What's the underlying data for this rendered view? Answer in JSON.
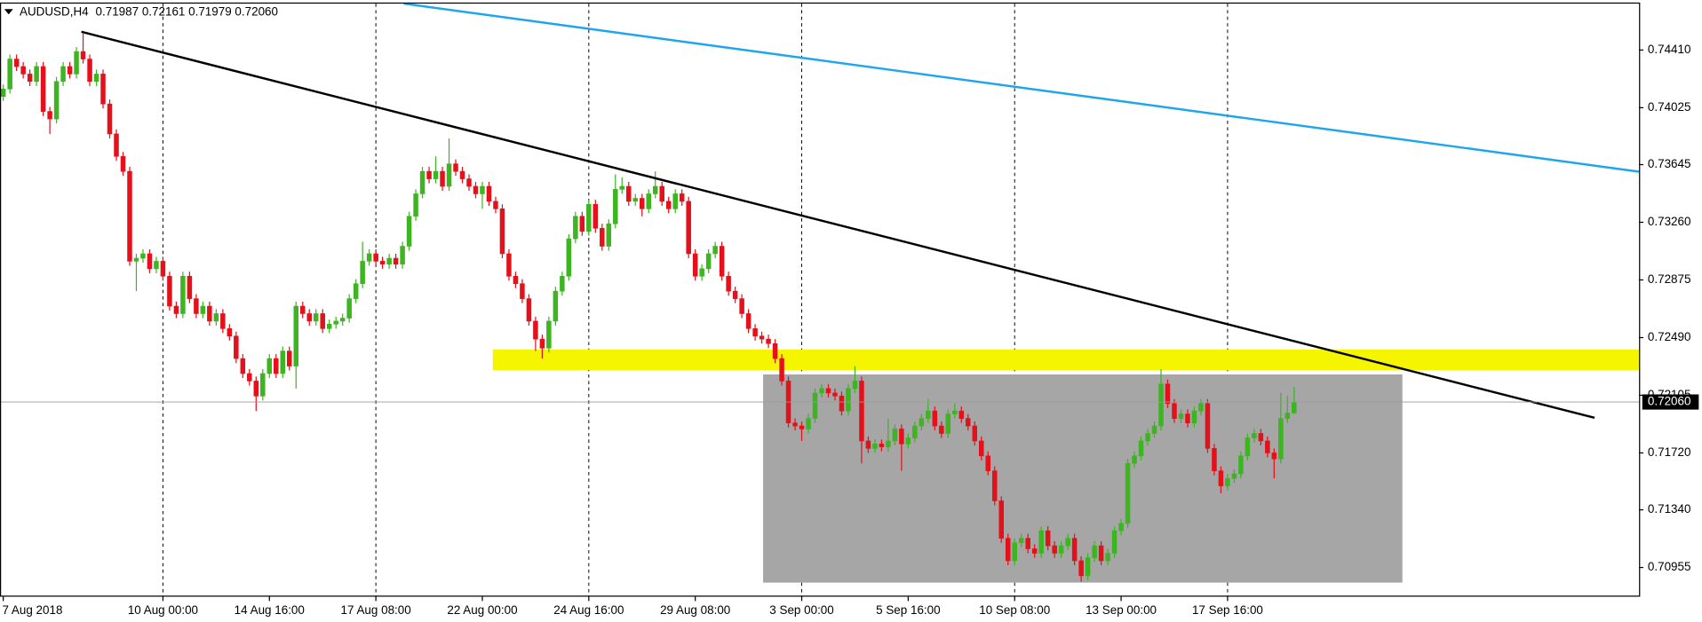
{
  "chart_data": {
    "type": "candlestick",
    "symbol": "AUDUSD,H4",
    "header_prices": "0.71987 0.72161 0.71979 0.72060",
    "up_color": "#3cb521",
    "down_color": "#e4101a",
    "categories": [
      "7 Aug 2018",
      null,
      null,
      null,
      null,
      null,
      null,
      null,
      null,
      null,
      null,
      null,
      null,
      null,
      null,
      null,
      null,
      null,
      null,
      null,
      null,
      null,
      null,
      null,
      "10 Aug 00:00",
      null,
      null,
      null,
      null,
      null,
      null,
      null,
      null,
      null,
      null,
      null,
      null,
      null,
      null,
      null,
      "14 Aug 16:00",
      null,
      null,
      null,
      null,
      null,
      null,
      null,
      null,
      null,
      null,
      null,
      null,
      null,
      null,
      null,
      "17 Aug 08:00",
      null,
      null,
      null,
      null,
      null,
      null,
      null,
      null,
      null,
      null,
      null,
      null,
      null,
      null,
      null,
      "22 Aug 00:00",
      null,
      null,
      null,
      null,
      null,
      null,
      null,
      null,
      null,
      null,
      null,
      null,
      null,
      null,
      null,
      "24 Aug 16:00",
      null,
      null,
      null,
      null,
      null,
      null,
      null,
      null,
      null,
      null,
      null,
      null,
      null,
      null,
      null,
      "29 Aug 08:00",
      null,
      null,
      null,
      null,
      null,
      null,
      null,
      null,
      null,
      null,
      null,
      null,
      null,
      null,
      null,
      "3 Sep 00:00",
      null,
      null,
      null,
      null,
      null,
      null,
      null,
      null,
      null,
      null,
      null,
      null,
      null,
      null,
      null,
      "5 Sep 16:00",
      null,
      null,
      null,
      null,
      null,
      null,
      null,
      null,
      null,
      null,
      null,
      null,
      null,
      null,
      null,
      "10 Sep 08:00",
      null,
      null,
      null,
      null,
      null,
      null,
      null,
      null,
      null,
      null,
      null,
      null,
      null,
      null,
      null,
      "13 Sep 00:00",
      null,
      null,
      null,
      null,
      null,
      null,
      null,
      null,
      null,
      null,
      null,
      null,
      null,
      null,
      null,
      "17 Sep 16:00",
      null,
      null,
      null,
      null,
      null,
      null,
      null,
      null,
      null,
      null
    ],
    "open": [
      0.741,
      0.7415,
      0.7435,
      0.743,
      0.7425,
      0.742,
      0.743,
      0.74,
      0.7395,
      0.742,
      0.743,
      0.7425,
      0.744,
      0.7435,
      0.742,
      0.7425,
      0.7405,
      0.7385,
      0.737,
      0.736,
      0.73,
      0.7302,
      0.7305,
      0.7295,
      0.73,
      0.729,
      0.727,
      0.7265,
      0.729,
      0.7275,
      0.7265,
      0.727,
      0.726,
      0.7265,
      0.7255,
      0.725,
      0.7235,
      0.7225,
      0.722,
      0.721,
      0.7225,
      0.7235,
      0.7225,
      0.724,
      0.723,
      0.727,
      0.7265,
      0.726,
      0.7265,
      0.7255,
      0.7258,
      0.726,
      0.7262,
      0.7275,
      0.7285,
      0.73,
      0.7305,
      0.73,
      0.7298,
      0.7302,
      0.7298,
      0.731,
      0.733,
      0.7345,
      0.736,
      0.7355,
      0.736,
      0.735,
      0.7365,
      0.736,
      0.7355,
      0.735,
      0.7345,
      0.735,
      0.734,
      0.7335,
      0.7305,
      0.729,
      0.7285,
      0.7275,
      0.726,
      0.7248,
      0.7242,
      0.726,
      0.728,
      0.729,
      0.7315,
      0.733,
      0.732,
      0.7338,
      0.7322,
      0.731,
      0.7325,
      0.7348,
      0.735,
      0.734,
      0.7342,
      0.7335,
      0.7345,
      0.735,
      0.734,
      0.7335,
      0.7345,
      0.734,
      0.7305,
      0.729,
      0.7295,
      0.7305,
      0.731,
      0.729,
      0.728,
      0.7275,
      0.7265,
      0.7255,
      0.725,
      0.7248,
      0.7245,
      0.7235,
      0.722,
      0.7192,
      0.719,
      0.7188,
      0.7195,
      0.7212,
      0.7215,
      0.7212,
      0.721,
      0.72,
      0.7215,
      0.722,
      0.718,
      0.7175,
      0.7178,
      0.7176,
      0.718,
      0.7188,
      0.7178,
      0.7182,
      0.719,
      0.7195,
      0.72,
      0.719,
      0.7185,
      0.7198,
      0.72,
      0.7195,
      0.719,
      0.718,
      0.717,
      0.716,
      0.714,
      0.7115,
      0.71,
      0.7112,
      0.7115,
      0.7108,
      0.7105,
      0.712,
      0.711,
      0.7105,
      0.711,
      0.7115,
      0.71,
      0.709,
      0.7102,
      0.711,
      0.71,
      0.7105,
      0.712,
      0.7125,
      0.7165,
      0.717,
      0.718,
      0.7185,
      0.719,
      0.7218,
      0.7205,
      0.7195,
      0.7198,
      0.7192,
      0.72,
      0.7205,
      0.7175,
      0.716,
      0.715,
      0.7155,
      0.7158,
      0.717,
      0.7182,
      0.7185,
      0.718,
      0.7172,
      0.7168,
      0.7195,
      0.71987
    ],
    "high": [
      0.7418,
      0.7438,
      0.7438,
      0.7433,
      0.7428,
      0.7433,
      0.7433,
      0.7403,
      0.7423,
      0.7433,
      0.7433,
      0.7443,
      0.7452,
      0.7438,
      0.7428,
      0.7428,
      0.7408,
      0.7388,
      0.7373,
      0.7363,
      0.7305,
      0.7308,
      0.7308,
      0.7303,
      0.7303,
      0.7293,
      0.7273,
      0.7293,
      0.7293,
      0.7278,
      0.7273,
      0.7273,
      0.7268,
      0.7268,
      0.7258,
      0.7253,
      0.7238,
      0.7228,
      0.7223,
      0.7228,
      0.7238,
      0.7238,
      0.7243,
      0.7243,
      0.7273,
      0.7273,
      0.7268,
      0.7268,
      0.7268,
      0.7261,
      0.7263,
      0.7265,
      0.7278,
      0.7288,
      0.7313,
      0.7308,
      0.7308,
      0.7303,
      0.7305,
      0.7305,
      0.7313,
      0.7333,
      0.7348,
      0.7363,
      0.7363,
      0.737,
      0.7363,
      0.7382,
      0.7368,
      0.7363,
      0.7358,
      0.7353,
      0.7353,
      0.7353,
      0.7343,
      0.7338,
      0.7308,
      0.7293,
      0.7288,
      0.7278,
      0.7263,
      0.7251,
      0.7263,
      0.7283,
      0.7293,
      0.7318,
      0.7333,
      0.7333,
      0.7341,
      0.7341,
      0.7325,
      0.7328,
      0.7358,
      0.7356,
      0.7353,
      0.7345,
      0.7345,
      0.7348,
      0.736,
      0.7353,
      0.7343,
      0.7348,
      0.7348,
      0.7343,
      0.7308,
      0.7298,
      0.7308,
      0.7313,
      0.7313,
      0.7293,
      0.7283,
      0.7278,
      0.7268,
      0.7258,
      0.7253,
      0.7251,
      0.7248,
      0.7238,
      0.7223,
      0.7195,
      0.7193,
      0.7198,
      0.7215,
      0.7218,
      0.7218,
      0.7215,
      0.7213,
      0.7218,
      0.723,
      0.7223,
      0.7183,
      0.7181,
      0.7181,
      0.7195,
      0.7191,
      0.7191,
      0.7185,
      0.7193,
      0.7198,
      0.7208,
      0.7203,
      0.7193,
      0.7201,
      0.7205,
      0.7203,
      0.7198,
      0.7193,
      0.7183,
      0.7173,
      0.7163,
      0.7143,
      0.7118,
      0.7115,
      0.7118,
      0.7118,
      0.7111,
      0.7123,
      0.7123,
      0.7113,
      0.7113,
      0.7118,
      0.7118,
      0.7103,
      0.7105,
      0.7113,
      0.7113,
      0.7108,
      0.7123,
      0.7128,
      0.7168,
      0.7173,
      0.7183,
      0.7188,
      0.7193,
      0.7228,
      0.7221,
      0.7208,
      0.7201,
      0.7201,
      0.7203,
      0.7208,
      0.7208,
      0.7178,
      0.7163,
      0.7158,
      0.7161,
      0.7173,
      0.7185,
      0.7188,
      0.7188,
      0.7183,
      0.7175,
      0.7212,
      0.721,
      0.72161
    ],
    "low": [
      0.7407,
      0.7412,
      0.7427,
      0.7422,
      0.7417,
      0.7417,
      0.7397,
      0.7385,
      0.7392,
      0.7417,
      0.7422,
      0.7422,
      0.7432,
      0.7417,
      0.7417,
      0.7402,
      0.7382,
      0.7367,
      0.7357,
      0.7297,
      0.728,
      0.7299,
      0.7292,
      0.7292,
      0.7287,
      0.7267,
      0.7262,
      0.7262,
      0.7272,
      0.7262,
      0.7262,
      0.7257,
      0.7257,
      0.7252,
      0.7247,
      0.7232,
      0.7222,
      0.7217,
      0.72,
      0.7207,
      0.7222,
      0.7222,
      0.7222,
      0.7227,
      0.7215,
      0.7262,
      0.7257,
      0.7257,
      0.7252,
      0.7252,
      0.7255,
      0.7257,
      0.7259,
      0.7272,
      0.7282,
      0.7297,
      0.7297,
      0.7295,
      0.7295,
      0.7295,
      0.7295,
      0.7307,
      0.7327,
      0.7342,
      0.7352,
      0.7352,
      0.7347,
      0.7347,
      0.7357,
      0.7352,
      0.7347,
      0.7342,
      0.7335,
      0.7337,
      0.7332,
      0.7302,
      0.7287,
      0.7282,
      0.7272,
      0.7257,
      0.724,
      0.7235,
      0.7239,
      0.7257,
      0.7277,
      0.7287,
      0.7312,
      0.7317,
      0.7317,
      0.7319,
      0.7307,
      0.7307,
      0.7322,
      0.7345,
      0.7337,
      0.7337,
      0.733,
      0.7332,
      0.7342,
      0.7337,
      0.7332,
      0.7332,
      0.7337,
      0.7302,
      0.7287,
      0.7287,
      0.7292,
      0.7302,
      0.7287,
      0.7277,
      0.7272,
      0.7262,
      0.7252,
      0.7247,
      0.7245,
      0.7242,
      0.7232,
      0.7217,
      0.7189,
      0.7187,
      0.718,
      0.7185,
      0.7192,
      0.7209,
      0.7209,
      0.7207,
      0.7197,
      0.7197,
      0.7212,
      0.7165,
      0.7172,
      0.7172,
      0.7173,
      0.7173,
      0.7177,
      0.716,
      0.7175,
      0.7179,
      0.7187,
      0.7192,
      0.7187,
      0.7182,
      0.7182,
      0.7195,
      0.7192,
      0.7187,
      0.7177,
      0.7167,
      0.7157,
      0.7137,
      0.7112,
      0.7097,
      0.7097,
      0.7109,
      0.7105,
      0.7102,
      0.7102,
      0.7107,
      0.7102,
      0.7102,
      0.7107,
      0.7097,
      0.7086,
      0.7087,
      0.7099,
      0.7097,
      0.7097,
      0.7102,
      0.7117,
      0.7122,
      0.7162,
      0.7167,
      0.7177,
      0.7182,
      0.7187,
      0.7202,
      0.7192,
      0.7192,
      0.7189,
      0.7189,
      0.7197,
      0.7172,
      0.7157,
      0.7145,
      0.7147,
      0.7152,
      0.7155,
      0.7167,
      0.7179,
      0.7177,
      0.7169,
      0.7155,
      0.7165,
      0.7192,
      0.71979
    ],
    "close": [
      0.7415,
      0.7435,
      0.743,
      0.7425,
      0.742,
      0.743,
      0.74,
      0.7395,
      0.742,
      0.743,
      0.7425,
      0.744,
      0.7435,
      0.742,
      0.7425,
      0.7405,
      0.7385,
      0.737,
      0.736,
      0.73,
      0.7302,
      0.7305,
      0.7295,
      0.73,
      0.729,
      0.727,
      0.7265,
      0.729,
      0.7275,
      0.7265,
      0.727,
      0.726,
      0.7265,
      0.7255,
      0.725,
      0.7235,
      0.7225,
      0.722,
      0.721,
      0.7225,
      0.7235,
      0.7225,
      0.724,
      0.723,
      0.727,
      0.7265,
      0.726,
      0.7265,
      0.7255,
      0.7258,
      0.726,
      0.7262,
      0.7275,
      0.7285,
      0.73,
      0.7305,
      0.73,
      0.7298,
      0.7302,
      0.7298,
      0.731,
      0.733,
      0.7345,
      0.736,
      0.7355,
      0.736,
      0.735,
      0.7365,
      0.736,
      0.7355,
      0.735,
      0.7345,
      0.735,
      0.734,
      0.7335,
      0.7305,
      0.729,
      0.7285,
      0.7275,
      0.726,
      0.7248,
      0.7242,
      0.726,
      0.728,
      0.729,
      0.7315,
      0.733,
      0.732,
      0.7338,
      0.7322,
      0.731,
      0.7325,
      0.7348,
      0.735,
      0.734,
      0.7342,
      0.7335,
      0.7345,
      0.735,
      0.734,
      0.7335,
      0.7345,
      0.734,
      0.7305,
      0.729,
      0.7295,
      0.7305,
      0.731,
      0.729,
      0.728,
      0.7275,
      0.7265,
      0.7255,
      0.725,
      0.7248,
      0.7245,
      0.7235,
      0.722,
      0.7192,
      0.719,
      0.7188,
      0.7195,
      0.7212,
      0.7215,
      0.7212,
      0.721,
      0.72,
      0.7215,
      0.722,
      0.718,
      0.7175,
      0.7178,
      0.7176,
      0.718,
      0.7188,
      0.7178,
      0.7182,
      0.719,
      0.7195,
      0.72,
      0.719,
      0.7185,
      0.7198,
      0.72,
      0.7195,
      0.719,
      0.718,
      0.717,
      0.716,
      0.714,
      0.7115,
      0.71,
      0.7112,
      0.7115,
      0.7108,
      0.7105,
      0.712,
      0.711,
      0.7105,
      0.711,
      0.7115,
      0.71,
      0.709,
      0.7102,
      0.711,
      0.71,
      0.7105,
      0.712,
      0.7125,
      0.7165,
      0.717,
      0.718,
      0.7185,
      0.719,
      0.7218,
      0.7205,
      0.7195,
      0.7198,
      0.7192,
      0.72,
      0.7205,
      0.7175,
      0.716,
      0.715,
      0.7155,
      0.7158,
      0.717,
      0.7182,
      0.7185,
      0.718,
      0.7172,
      0.7168,
      0.7195,
      0.71987,
      0.7206
    ],
    "current_price": {
      "value": 0.7206,
      "label": "0.72060"
    },
    "ylim": [
      0.7076,
      0.7472
    ],
    "yticks": [
      {
        "value": 0.7441,
        "label": "0.74410"
      },
      {
        "value": 0.74025,
        "label": "0.74025"
      },
      {
        "value": 0.73645,
        "label": "0.73645"
      },
      {
        "value": 0.7326,
        "label": "0.73260"
      },
      {
        "value": 0.72875,
        "label": "0.72875"
      },
      {
        "value": 0.7249,
        "label": "0.72490"
      },
      {
        "value": 0.72105,
        "label": "0.72105"
      },
      {
        "value": 0.7172,
        "label": "0.71720"
      },
      {
        "value": 0.7134,
        "label": "0.71340"
      },
      {
        "value": 0.70955,
        "label": "0.70955"
      }
    ],
    "grid": true
  }
}
